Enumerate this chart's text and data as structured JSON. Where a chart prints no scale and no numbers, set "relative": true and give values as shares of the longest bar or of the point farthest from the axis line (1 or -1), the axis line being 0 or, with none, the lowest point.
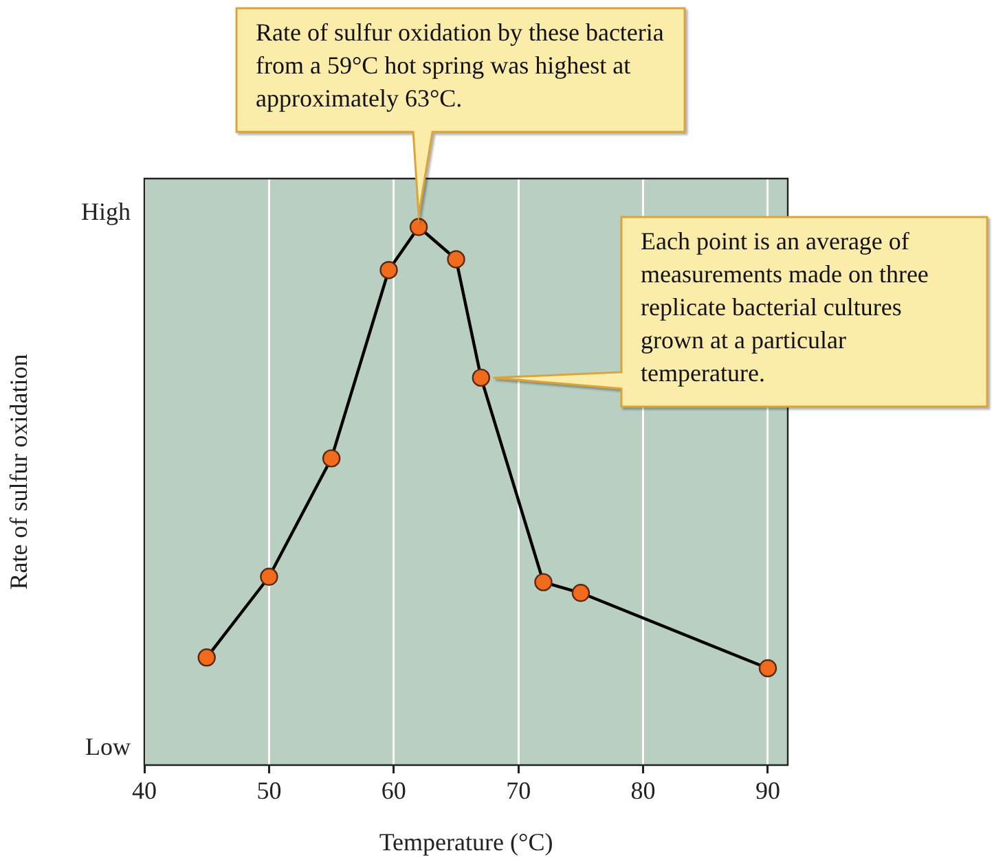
{
  "chart_data": {
    "type": "line",
    "xlabel": "Temperature (°C)",
    "ylabel": "Rate of sulfur oxidation",
    "relative": true,
    "x": [
      45,
      50,
      55,
      59.6,
      62,
      65,
      67,
      72,
      75,
      90
    ],
    "values": [
      0.2,
      0.35,
      0.57,
      0.92,
      1,
      0.94,
      0.72,
      0.34,
      0.32,
      0.18
    ],
    "color": "#000000",
    "marker": "circle",
    "line_style": "solid",
    "grid": "x",
    "legend": false,
    "xlim": [
      40,
      91.6
    ],
    "xticks": [
      40,
      50,
      60,
      70,
      80,
      90
    ],
    "annotations": [
      "Rate of sulfur oxidation by these bacteria from a 59°C hot spring was highest at approximately 63°C.",
      "Each point is an average of measurements made on three replicate bacterial cultures grown at a particular temperature.",
      "High",
      "Low"
    ]
  }
}
